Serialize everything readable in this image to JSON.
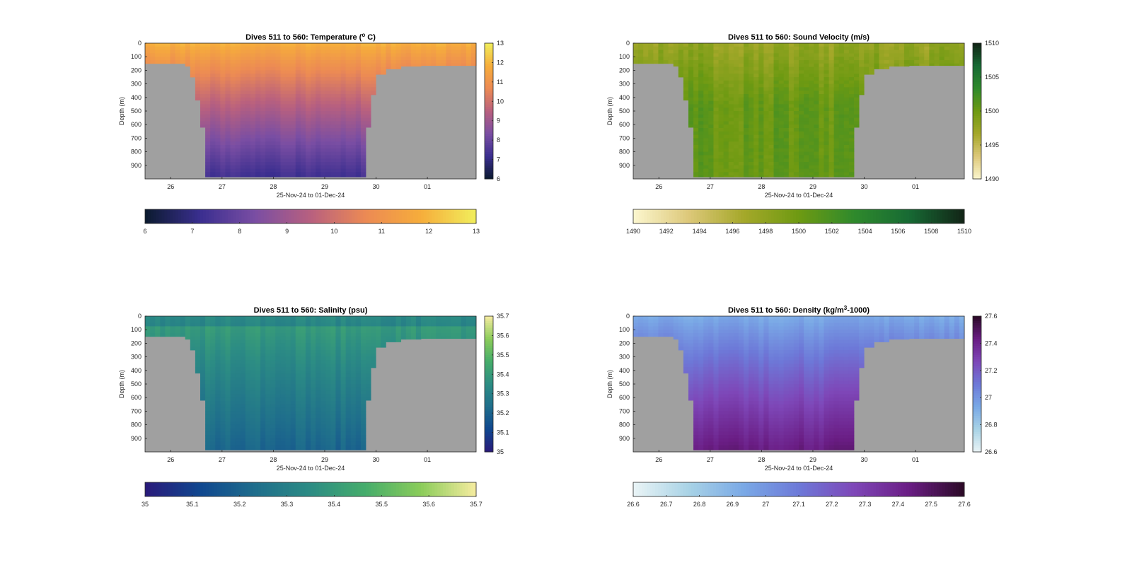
{
  "figure": {
    "background": "#ffffff",
    "land_color": "#a0a0a0"
  },
  "chart_data": [
    {
      "type": "heatmap",
      "title_prefix": "Dives 511 to 560: Temperature (",
      "title_sup": "o",
      "title_suffix": " C)",
      "xlabel": "25-Nov-24 to 01-Dec-24",
      "ylabel": "Depth (m)",
      "xticks": [
        "26",
        "27",
        "28",
        "29",
        "30",
        "01"
      ],
      "xtick_values": [
        26,
        27,
        28,
        29,
        30,
        31
      ],
      "xlim": [
        25.5,
        31.95
      ],
      "ylim": [
        1000,
        0
      ],
      "yticks": [
        "0",
        "100",
        "200",
        "300",
        "400",
        "500",
        "600",
        "700",
        "800",
        "900"
      ],
      "ytick_values": [
        0,
        100,
        200,
        300,
        400,
        500,
        600,
        700,
        800,
        900
      ],
      "colormap": [
        "#0b1a2f",
        "#3a2e8f",
        "#7a4ea3",
        "#b8607f",
        "#ec8a54",
        "#f6ad3b",
        "#f1ee5c"
      ],
      "clim": [
        6,
        13
      ],
      "right_colorbar_ticks": [
        "6",
        "7",
        "8",
        "9",
        "10",
        "11",
        "12",
        "13"
      ],
      "right_colorbar_values": [
        6,
        7,
        8,
        9,
        10,
        11,
        12,
        13
      ],
      "bottom_colorbar_ticks": [
        "6",
        "7",
        "8",
        "9",
        "10",
        "11",
        "12",
        "13"
      ],
      "bottom_colorbar_values": [
        6,
        7,
        8,
        9,
        10,
        11,
        12,
        13
      ],
      "value_surface": 11.9,
      "value_bottom": 7.2
    },
    {
      "type": "heatmap",
      "title_prefix": "Dives 511 to 560: Sound Velocity (m/s)",
      "title_sup": "",
      "title_suffix": "",
      "xlabel": "25-Nov-24 to 01-Dec-24",
      "ylabel": "Depth (m)",
      "xticks": [
        "26",
        "27",
        "28",
        "29",
        "30",
        "01"
      ],
      "xtick_values": [
        26,
        27,
        28,
        29,
        30,
        31
      ],
      "xlim": [
        25.5,
        31.95
      ],
      "ylim": [
        1000,
        0
      ],
      "yticks": [
        "0",
        "100",
        "200",
        "300",
        "400",
        "500",
        "600",
        "700",
        "800",
        "900"
      ],
      "ytick_values": [
        0,
        100,
        200,
        300,
        400,
        500,
        600,
        700,
        800,
        900
      ],
      "colormap": [
        "#fcf7cf",
        "#ddc87a",
        "#a5a82a",
        "#6e9a12",
        "#2f8a2c",
        "#176a34",
        "#122416"
      ],
      "clim": [
        1490,
        1510
      ],
      "right_colorbar_ticks": [
        "1490",
        "1495",
        "1500",
        "1505",
        "1510"
      ],
      "right_colorbar_values": [
        1490,
        1495,
        1500,
        1505,
        1510
      ],
      "bottom_colorbar_ticks": [
        "1490",
        "1492",
        "1494",
        "1496",
        "1498",
        "1500",
        "1502",
        "1504",
        "1506",
        "1508",
        "1510"
      ],
      "bottom_colorbar_values": [
        1490,
        1492,
        1494,
        1496,
        1498,
        1500,
        1502,
        1504,
        1506,
        1508,
        1510
      ],
      "value_surface": 1497.5,
      "value_bottom": 1500.5
    },
    {
      "type": "heatmap",
      "title_prefix": "Dives 511 to 560: Salinity (psu)",
      "title_sup": "",
      "title_suffix": "",
      "xlabel": "25-Nov-24 to 01-Dec-24",
      "ylabel": "Depth (m)",
      "xticks": [
        "26",
        "27",
        "28",
        "29",
        "30",
        "01"
      ],
      "xtick_values": [
        26,
        27,
        28,
        29,
        30,
        31
      ],
      "xlim": [
        25.5,
        31.95
      ],
      "ylim": [
        1000,
        0
      ],
      "yticks": [
        "0",
        "100",
        "200",
        "300",
        "400",
        "500",
        "600",
        "700",
        "800",
        "900"
      ],
      "ytick_values": [
        0,
        100,
        200,
        300,
        400,
        500,
        600,
        700,
        800,
        900
      ],
      "colormap": [
        "#2a1a7a",
        "#10478f",
        "#1f6e8c",
        "#2c8c84",
        "#46ad6b",
        "#8bcc5a",
        "#f6eca0"
      ],
      "clim": [
        35,
        35.7
      ],
      "right_colorbar_ticks": [
        "35",
        "35.1",
        "35.2",
        "35.3",
        "35.4",
        "35.5",
        "35.6",
        "35.7"
      ],
      "right_colorbar_values": [
        35,
        35.1,
        35.2,
        35.3,
        35.4,
        35.5,
        35.6,
        35.7
      ],
      "bottom_colorbar_ticks": [
        "35",
        "35.1",
        "35.2",
        "35.3",
        "35.4",
        "35.5",
        "35.6",
        "35.7"
      ],
      "bottom_colorbar_values": [
        35,
        35.1,
        35.2,
        35.3,
        35.4,
        35.5,
        35.6,
        35.7
      ],
      "value_surface": 35.42,
      "value_bottom": 35.2
    },
    {
      "type": "heatmap",
      "title_prefix": "Dives 511 to 560: Density (kg/m",
      "title_sup": "3",
      "title_suffix": "-1000)",
      "xlabel": "25-Nov-24 to 01-Dec-24",
      "ylabel": "Depth (m)",
      "xticks": [
        "26",
        "27",
        "28",
        "29",
        "30",
        "01"
      ],
      "xtick_values": [
        26,
        27,
        28,
        29,
        30,
        31
      ],
      "xlim": [
        25.5,
        31.95
      ],
      "ylim": [
        1000,
        0
      ],
      "yticks": [
        "0",
        "100",
        "200",
        "300",
        "400",
        "500",
        "600",
        "700",
        "800",
        "900"
      ],
      "ytick_values": [
        0,
        100,
        200,
        300,
        400,
        500,
        600,
        700,
        800,
        900
      ],
      "colormap": [
        "#eaf4f6",
        "#a9d3e6",
        "#7aa9e6",
        "#6d79d8",
        "#7e47b8",
        "#6a1d84",
        "#2b0a26"
      ],
      "clim": [
        26.6,
        27.6
      ],
      "right_colorbar_ticks": [
        "26.6",
        "26.8",
        "27",
        "27.2",
        "27.4",
        "27.6"
      ],
      "right_colorbar_values": [
        26.6,
        26.8,
        27,
        27.2,
        27.4,
        27.6
      ],
      "bottom_colorbar_ticks": [
        "26.6",
        "26.7",
        "26.8",
        "26.9",
        "27",
        "27.1",
        "27.2",
        "27.3",
        "27.4",
        "27.5",
        "27.6"
      ],
      "bottom_colorbar_values": [
        26.6,
        26.7,
        26.8,
        26.9,
        27,
        27.1,
        27.2,
        27.3,
        27.4,
        27.5,
        27.6
      ],
      "value_surface": 26.92,
      "value_bottom": 27.45
    }
  ]
}
